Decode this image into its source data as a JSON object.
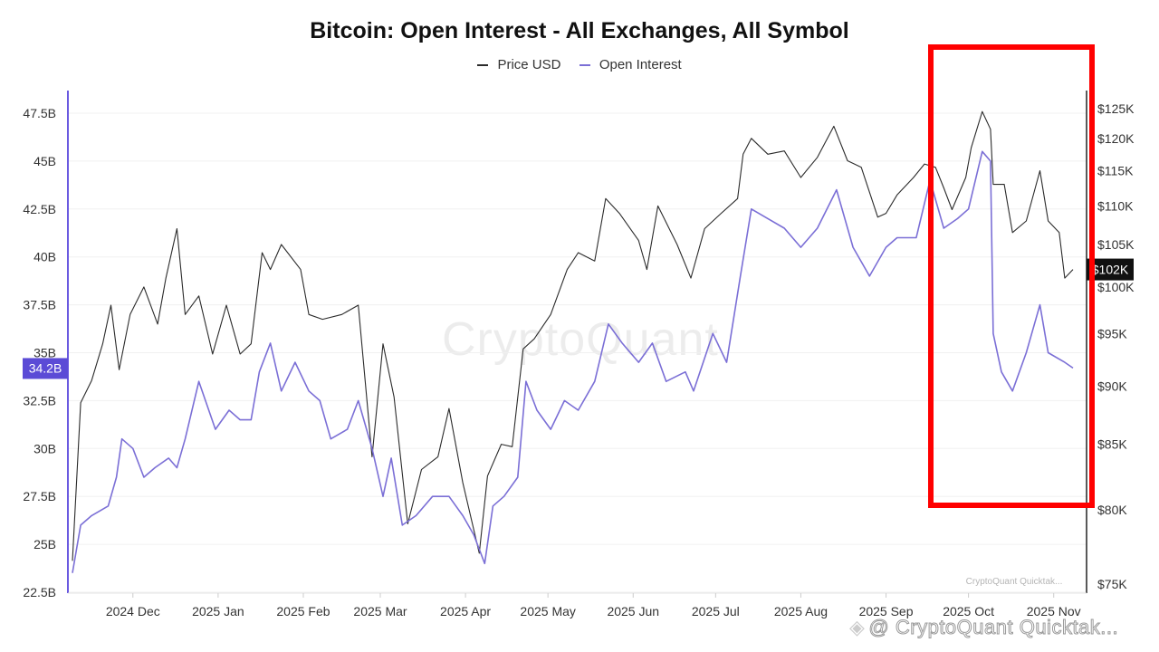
{
  "chart_data": {
    "type": "line",
    "title": "Bitcoin: Open Interest - All Exchanges, All Symbol",
    "legend": [
      "Price USD",
      "Open Interest"
    ],
    "legend_position": "top-center",
    "grid": true,
    "colors": {
      "price": "#2b2b2b",
      "open_interest": "#7b6fd6",
      "current_oi": "#5b4bd6",
      "current_price": "#111111",
      "highlight": "#ff0000"
    },
    "x_ticks": [
      "2024 Dec",
      "2025 Jan",
      "2025 Feb",
      "2025 Mar",
      "2025 Apr",
      "2025 May",
      "2025 Jun",
      "2025 Jul",
      "2025 Aug",
      "2025 Sep",
      "2025 Oct",
      "2025 Nov"
    ],
    "x_tick_dates": [
      "2024-12-01",
      "2025-01-01",
      "2025-02-01",
      "2025-03-01",
      "2025-04-01",
      "2025-05-01",
      "2025-06-01",
      "2025-07-01",
      "2025-08-01",
      "2025-09-01",
      "2025-10-01",
      "2025-11-01"
    ],
    "left_axis": {
      "label": "",
      "ticks": [
        "22.5B",
        "25B",
        "27.5B",
        "30B",
        "32.5B",
        "35B",
        "37.5B",
        "40B",
        "42.5B",
        "45B",
        "47.5B"
      ],
      "range": [
        22.5,
        47.5
      ]
    },
    "right_axis": {
      "label": "",
      "ticks": [
        "$75K",
        "$80K",
        "$85K",
        "$90K",
        "$95K",
        "$100K",
        "$105K",
        "$110K",
        "$115K",
        "$120K",
        "$125K"
      ],
      "type": "reciprocal",
      "range": [
        75000,
        125000
      ]
    },
    "current_labels": {
      "open_interest": "34.2B",
      "price": "$102K"
    },
    "series": [
      {
        "name": "Price USD",
        "axis": "right",
        "points": [
          [
            "2024-11-09",
            76500
          ],
          [
            "2024-11-12",
            88500
          ],
          [
            "2024-11-16",
            90500
          ],
          [
            "2024-11-20",
            94000
          ],
          [
            "2024-11-23",
            98000
          ],
          [
            "2024-11-26",
            91500
          ],
          [
            "2024-11-30",
            97000
          ],
          [
            "2024-12-05",
            100000
          ],
          [
            "2024-12-10",
            96000
          ],
          [
            "2024-12-13",
            101000
          ],
          [
            "2024-12-17",
            107000
          ],
          [
            "2024-12-20",
            97000
          ],
          [
            "2024-12-25",
            99000
          ],
          [
            "2024-12-30",
            93000
          ],
          [
            "2025-01-04",
            98000
          ],
          [
            "2025-01-09",
            93000
          ],
          [
            "2025-01-13",
            94000
          ],
          [
            "2025-01-17",
            104000
          ],
          [
            "2025-01-20",
            102000
          ],
          [
            "2025-01-24",
            105000
          ],
          [
            "2025-01-31",
            102000
          ],
          [
            "2025-02-03",
            97000
          ],
          [
            "2025-02-08",
            96500
          ],
          [
            "2025-02-15",
            97000
          ],
          [
            "2025-02-21",
            98000
          ],
          [
            "2025-02-26",
            84000
          ],
          [
            "2025-03-02",
            94000
          ],
          [
            "2025-03-06",
            89000
          ],
          [
            "2025-03-11",
            79000
          ],
          [
            "2025-03-16",
            83000
          ],
          [
            "2025-03-22",
            84000
          ],
          [
            "2025-03-26",
            88000
          ],
          [
            "2025-03-31",
            82000
          ],
          [
            "2025-04-06",
            77000
          ],
          [
            "2025-04-09",
            82500
          ],
          [
            "2025-04-14",
            85000
          ],
          [
            "2025-04-18",
            84800
          ],
          [
            "2025-04-22",
            93500
          ],
          [
            "2025-04-26",
            94500
          ],
          [
            "2025-05-02",
            97000
          ],
          [
            "2025-05-08",
            102000
          ],
          [
            "2025-05-12",
            104000
          ],
          [
            "2025-05-18",
            103000
          ],
          [
            "2025-05-22",
            111000
          ],
          [
            "2025-05-27",
            109000
          ],
          [
            "2025-06-03",
            105500
          ],
          [
            "2025-06-06",
            102000
          ],
          [
            "2025-06-10",
            110000
          ],
          [
            "2025-06-17",
            105000
          ],
          [
            "2025-06-22",
            101000
          ],
          [
            "2025-06-27",
            107000
          ],
          [
            "2025-07-03",
            109000
          ],
          [
            "2025-07-09",
            111000
          ],
          [
            "2025-07-11",
            117500
          ],
          [
            "2025-07-14",
            120000
          ],
          [
            "2025-07-20",
            117500
          ],
          [
            "2025-07-26",
            118000
          ],
          [
            "2025-08-01",
            114000
          ],
          [
            "2025-08-07",
            117000
          ],
          [
            "2025-08-13",
            122000
          ],
          [
            "2025-08-18",
            116500
          ],
          [
            "2025-08-23",
            115500
          ],
          [
            "2025-08-29",
            108500
          ],
          [
            "2025-09-01",
            109000
          ],
          [
            "2025-09-05",
            111500
          ],
          [
            "2025-09-11",
            114000
          ],
          [
            "2025-09-15",
            116000
          ],
          [
            "2025-09-19",
            115500
          ],
          [
            "2025-09-22",
            112500
          ],
          [
            "2025-09-25",
            109500
          ],
          [
            "2025-09-30",
            114000
          ],
          [
            "2025-10-02",
            118500
          ],
          [
            "2025-10-06",
            124500
          ],
          [
            "2025-10-09",
            121500
          ],
          [
            "2025-10-10",
            113000
          ],
          [
            "2025-10-14",
            113000
          ],
          [
            "2025-10-17",
            106500
          ],
          [
            "2025-10-22",
            108000
          ],
          [
            "2025-10-27",
            115000
          ],
          [
            "2025-10-30",
            108000
          ],
          [
            "2025-11-03",
            106500
          ],
          [
            "2025-11-05",
            101000
          ],
          [
            "2025-11-08",
            102000
          ]
        ]
      },
      {
        "name": "Open Interest",
        "axis": "left",
        "points": [
          [
            "2024-11-09",
            23.5
          ],
          [
            "2024-11-12",
            26.0
          ],
          [
            "2024-11-16",
            26.5
          ],
          [
            "2024-11-22",
            27.0
          ],
          [
            "2024-11-25",
            28.5
          ],
          [
            "2024-11-27",
            30.5
          ],
          [
            "2024-12-01",
            30.0
          ],
          [
            "2024-12-05",
            28.5
          ],
          [
            "2024-12-09",
            29.0
          ],
          [
            "2024-12-14",
            29.5
          ],
          [
            "2024-12-17",
            29.0
          ],
          [
            "2024-12-20",
            30.5
          ],
          [
            "2024-12-25",
            33.5
          ],
          [
            "2024-12-31",
            31.0
          ],
          [
            "2025-01-05",
            32.0
          ],
          [
            "2025-01-09",
            31.5
          ],
          [
            "2025-01-13",
            31.5
          ],
          [
            "2025-01-16",
            34.0
          ],
          [
            "2025-01-20",
            35.5
          ],
          [
            "2025-01-24",
            33.0
          ],
          [
            "2025-01-29",
            34.5
          ],
          [
            "2025-02-03",
            33.0
          ],
          [
            "2025-02-07",
            32.5
          ],
          [
            "2025-02-11",
            30.5
          ],
          [
            "2025-02-17",
            31.0
          ],
          [
            "2025-02-21",
            32.5
          ],
          [
            "2025-02-26",
            30.0
          ],
          [
            "2025-03-02",
            27.5
          ],
          [
            "2025-03-05",
            29.5
          ],
          [
            "2025-03-09",
            26.0
          ],
          [
            "2025-03-14",
            26.5
          ],
          [
            "2025-03-20",
            27.5
          ],
          [
            "2025-03-26",
            27.5
          ],
          [
            "2025-03-31",
            26.5
          ],
          [
            "2025-04-04",
            25.5
          ],
          [
            "2025-04-08",
            24.0
          ],
          [
            "2025-04-11",
            27.0
          ],
          [
            "2025-04-15",
            27.5
          ],
          [
            "2025-04-20",
            28.5
          ],
          [
            "2025-04-23",
            33.5
          ],
          [
            "2025-04-27",
            32.0
          ],
          [
            "2025-05-02",
            31.0
          ],
          [
            "2025-05-07",
            32.5
          ],
          [
            "2025-05-12",
            32.0
          ],
          [
            "2025-05-18",
            33.5
          ],
          [
            "2025-05-23",
            36.5
          ],
          [
            "2025-05-28",
            35.5
          ],
          [
            "2025-06-03",
            34.5
          ],
          [
            "2025-06-08",
            35.5
          ],
          [
            "2025-06-13",
            33.5
          ],
          [
            "2025-06-20",
            34.0
          ],
          [
            "2025-06-23",
            33.0
          ],
          [
            "2025-06-30",
            36.0
          ],
          [
            "2025-07-05",
            34.5
          ],
          [
            "2025-07-10",
            39.0
          ],
          [
            "2025-07-14",
            42.5
          ],
          [
            "2025-07-20",
            42.0
          ],
          [
            "2025-07-26",
            41.5
          ],
          [
            "2025-08-01",
            40.5
          ],
          [
            "2025-08-07",
            41.5
          ],
          [
            "2025-08-14",
            43.5
          ],
          [
            "2025-08-20",
            40.5
          ],
          [
            "2025-08-26",
            39.0
          ],
          [
            "2025-09-01",
            40.5
          ],
          [
            "2025-09-05",
            41.0
          ],
          [
            "2025-09-12",
            41.0
          ],
          [
            "2025-09-17",
            44.0
          ],
          [
            "2025-09-22",
            41.5
          ],
          [
            "2025-09-27",
            42.0
          ],
          [
            "2025-10-01",
            42.5
          ],
          [
            "2025-10-06",
            45.5
          ],
          [
            "2025-10-09",
            45.0
          ],
          [
            "2025-10-10",
            36.0
          ],
          [
            "2025-10-13",
            34.0
          ],
          [
            "2025-10-17",
            33.0
          ],
          [
            "2025-10-22",
            35.0
          ],
          [
            "2025-10-27",
            37.5
          ],
          [
            "2025-10-30",
            35.0
          ],
          [
            "2025-11-05",
            34.5
          ],
          [
            "2025-11-08",
            34.2
          ]
        ]
      }
    ]
  },
  "watermark": "CryptoQuant",
  "attribution": "@ CryptoQuant Quicktak...",
  "bottom_right_note": "CryptoQuant Quicktak..."
}
